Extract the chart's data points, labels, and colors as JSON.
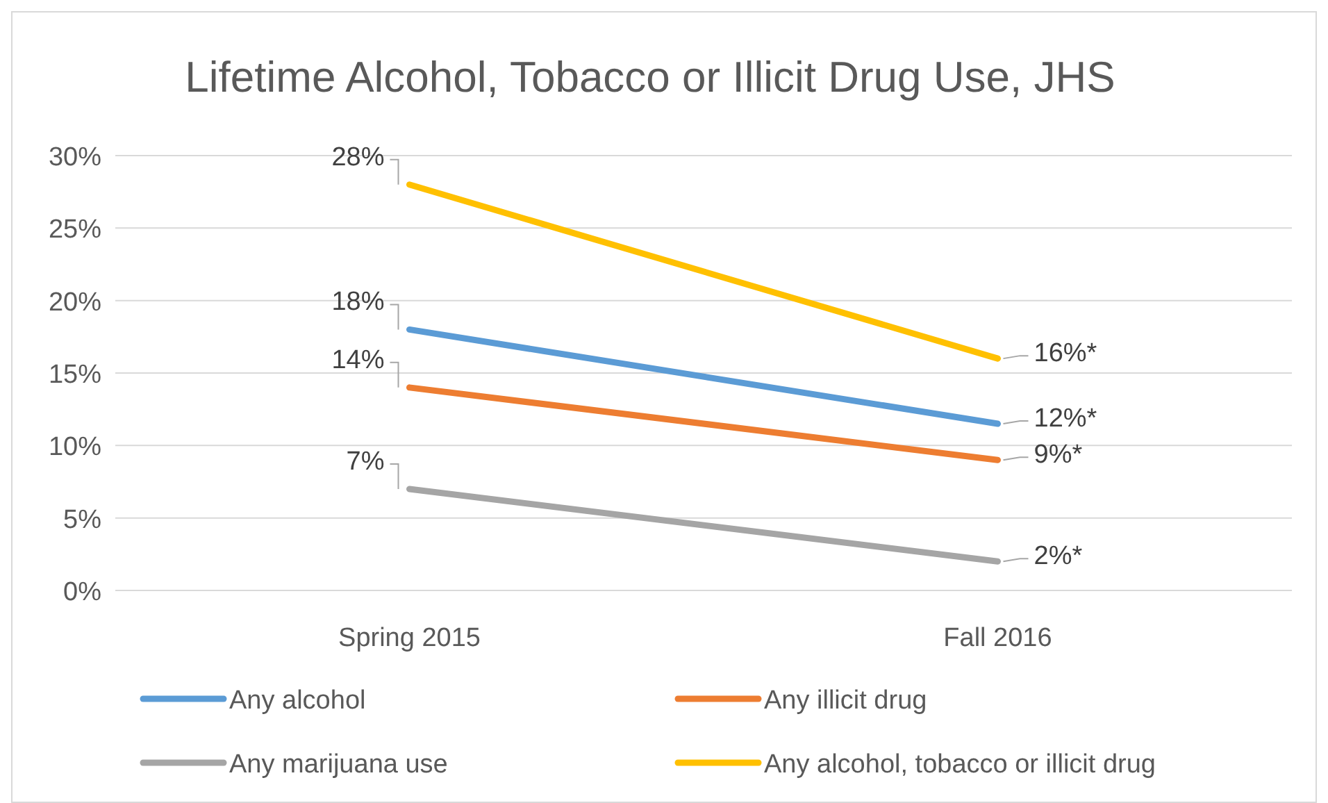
{
  "chart_data": {
    "type": "line",
    "title": "Lifetime Alcohol, Tobacco or Illicit Drug Use, JHS",
    "categories": [
      "Spring 2015",
      "Fall 2016"
    ],
    "series": [
      {
        "name": "Any alcohol",
        "color": "#5b9bd5",
        "values": [
          18,
          11.5
        ],
        "value_labels": [
          "18%",
          "12%*"
        ]
      },
      {
        "name": "Any illicit drug",
        "color": "#ed7d31",
        "values": [
          14,
          9
        ],
        "value_labels": [
          "14%",
          "9%*"
        ]
      },
      {
        "name": "Any marijuana use",
        "color": "#a5a5a5",
        "values": [
          7,
          2
        ],
        "value_labels": [
          "7%",
          "2%*"
        ]
      },
      {
        "name": "Any alcohol, tobacco or illicit drug",
        "color": "#ffc000",
        "values": [
          28,
          16
        ],
        "value_labels": [
          "28%",
          "16%*"
        ]
      }
    ],
    "ylim": [
      0,
      30
    ],
    "yticks": [
      {
        "value": 0,
        "label": "0%"
      },
      {
        "value": 5,
        "label": "5%"
      },
      {
        "value": 10,
        "label": "10%"
      },
      {
        "value": 15,
        "label": "15%"
      },
      {
        "value": 20,
        "label": "20%"
      },
      {
        "value": 25,
        "label": "25%"
      },
      {
        "value": 30,
        "label": "30%"
      }
    ],
    "grid": "y",
    "legend": "bottom",
    "marker": "none",
    "line_style": "solid"
  }
}
